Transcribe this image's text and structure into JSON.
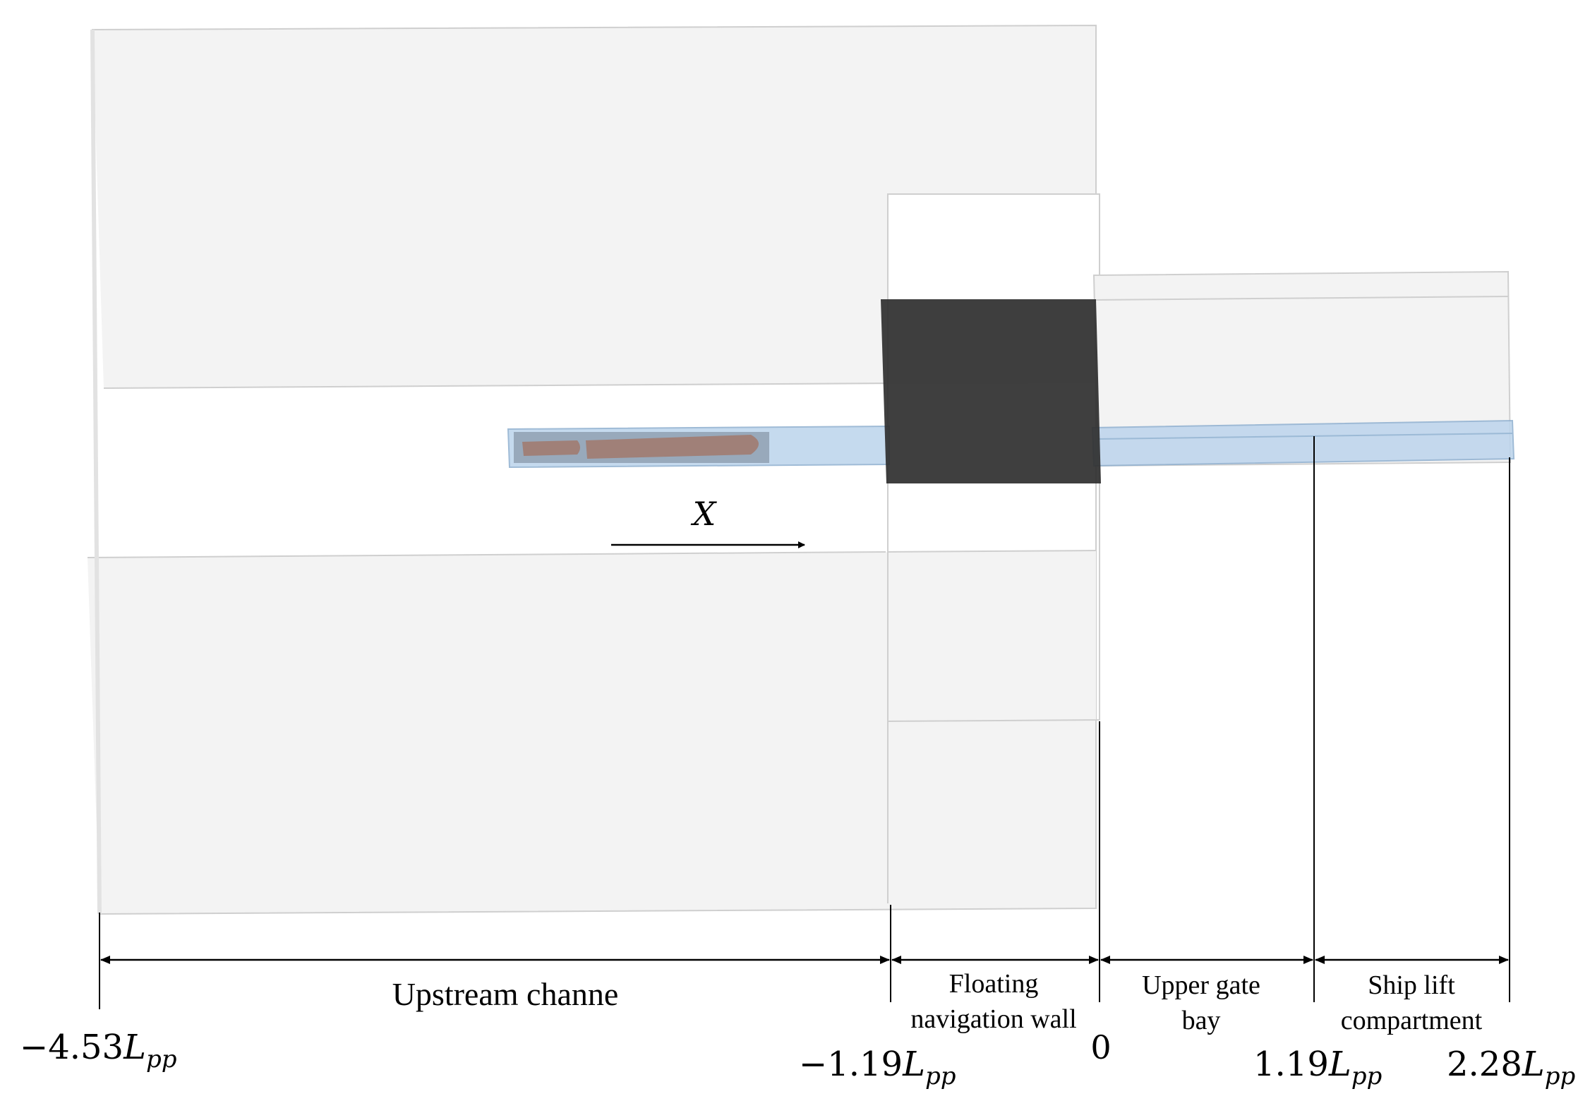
{
  "axis": {
    "direction_label": "X"
  },
  "regions": [
    {
      "lines": [
        "Upstream channe"
      ]
    },
    {
      "lines": [
        "Floating",
        "navigation wall"
      ]
    },
    {
      "lines": [
        "Upper gate",
        "bay"
      ]
    },
    {
      "lines": [
        "Ship lift",
        "compartment"
      ]
    }
  ],
  "positions": [
    {
      "coef": "−4.53",
      "symbol": "L",
      "subscript": "pp"
    },
    {
      "coef": "−1.19",
      "symbol": "L",
      "subscript": "pp"
    },
    {
      "coef": "0",
      "symbol": "",
      "subscript": ""
    },
    {
      "coef": "1.19",
      "symbol": "L",
      "subscript": "pp"
    },
    {
      "coef": "2.28",
      "symbol": "L",
      "subscript": "pp"
    }
  ],
  "colors": {
    "domain_fill": "#f3f3f3",
    "domain_edge": "#c8c8c8",
    "wall_block": "#2f2f2f",
    "water_channel": "#bcd4ec",
    "water_edge": "#8fb0d0",
    "ship_hull": "#a08078",
    "ship_box": "#7f8fa0",
    "dimension_line": "#000000"
  }
}
